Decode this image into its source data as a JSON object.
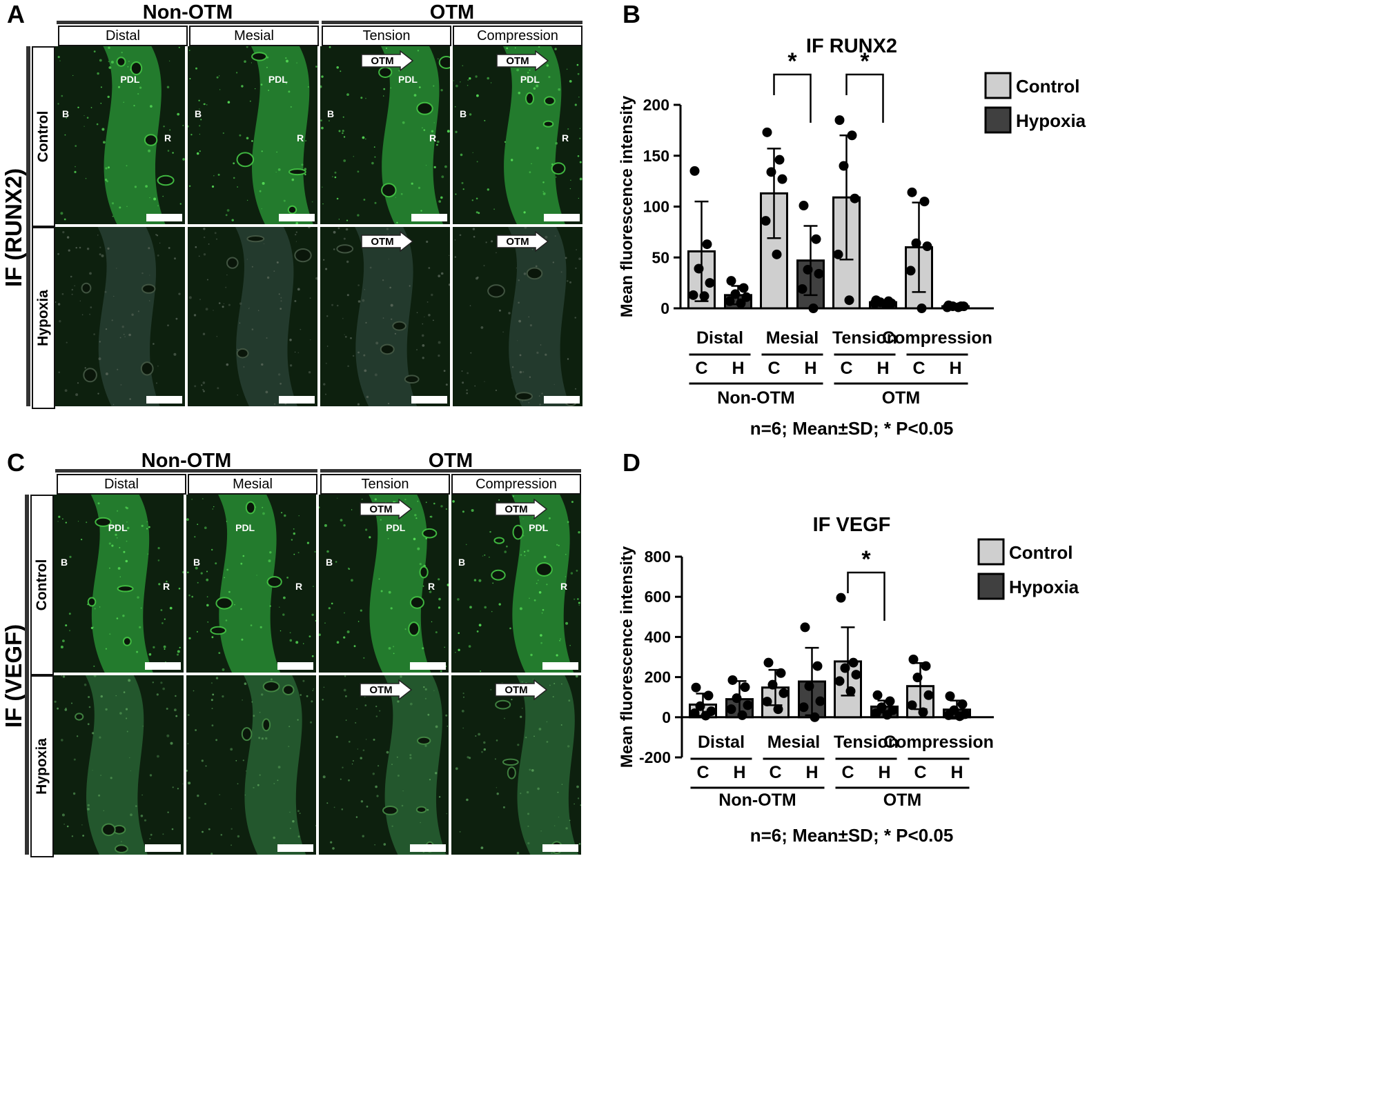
{
  "panels": {
    "A": {
      "label": "A",
      "side_label": "IF (RUNX2)",
      "groups": [
        "Non-OTM",
        "OTM"
      ],
      "columns": [
        "Distal",
        "Mesial",
        "Tension",
        "Compression"
      ],
      "rows": [
        "Control",
        "Hypoxia"
      ],
      "arrow_text": "OTM",
      "tissue_labels": [
        "PDL",
        "B",
        "R"
      ]
    },
    "C": {
      "label": "C",
      "side_label": "IF (VEGF)",
      "groups": [
        "Non-OTM",
        "OTM"
      ],
      "columns": [
        "Distal",
        "Mesial",
        "Tension",
        "Compression"
      ],
      "rows": [
        "Control",
        "Hypoxia"
      ],
      "arrow_text": "OTM",
      "tissue_labels": [
        "PDL",
        "B",
        "R"
      ]
    },
    "B": {
      "label": "B"
    },
    "D": {
      "label": "D"
    }
  },
  "chart_data": [
    {
      "type": "bar",
      "panel": "B",
      "title": "IF RUNX2",
      "ylabel": "Mean fluorescence intensity",
      "ylim": [
        0,
        200
      ],
      "yticks": [
        0,
        50,
        100,
        150,
        200
      ],
      "categories": [
        "Distal",
        "Mesial",
        "Tension",
        "Compression"
      ],
      "subcategories": [
        "C",
        "H"
      ],
      "groups": [
        "Non-OTM",
        "OTM"
      ],
      "legend": [
        "Control",
        "Hypoxia"
      ],
      "legend_position": "top-right",
      "series_colors": {
        "Control": "#cfcfcf",
        "Hypoxia": "#404040"
      },
      "series": [
        {
          "name": "Control",
          "values": [
            56,
            113,
            109,
            60
          ],
          "sd": [
            49,
            44,
            61,
            44
          ],
          "points": [
            [
              135,
              63,
              39,
              25,
              13,
              12
            ],
            [
              173,
              146,
              134,
              127,
              86,
              53
            ],
            [
              185,
              170,
              140,
              108,
              53,
              8
            ],
            [
              114,
              105,
              64,
              61,
              37,
              0
            ]
          ]
        },
        {
          "name": "Hypoxia",
          "values": [
            13,
            47,
            6,
            2
          ],
          "sd": [
            9,
            34,
            2,
            1
          ],
          "points": [
            [
              27,
              20,
              14,
              11,
              7,
              5
            ],
            [
              101,
              68,
              38,
              34,
              19,
              0
            ],
            [
              8,
              7,
              6,
              5,
              5,
              4
            ],
            [
              3,
              2,
              2,
              2,
              1,
              1
            ]
          ]
        }
      ],
      "significance": [
        {
          "category": "Mesial",
          "label": "*"
        },
        {
          "category": "Tension",
          "label": "*"
        }
      ],
      "footnote": "n=6; Mean±SD; * P<0.05"
    },
    {
      "type": "bar",
      "panel": "D",
      "title": "IF VEGF",
      "ylabel": "Mean fluorescence intensity",
      "ylim": [
        -200,
        800
      ],
      "yticks": [
        -200,
        0,
        200,
        400,
        600,
        800
      ],
      "categories": [
        "Distal",
        "Mesial",
        "Tension",
        "Compression"
      ],
      "subcategories": [
        "C",
        "H"
      ],
      "groups": [
        "Non-OTM",
        "OTM"
      ],
      "legend": [
        "Control",
        "Hypoxia"
      ],
      "legend_position": "top-right",
      "series_colors": {
        "Control": "#cfcfcf",
        "Hypoxia": "#404040"
      },
      "series": [
        {
          "name": "Control",
          "values": [
            63,
            148,
            278,
            155
          ],
          "sd": [
            55,
            88,
            170,
            115
          ],
          "points": [
            [
              148,
              108,
              55,
              30,
              20,
              8
            ],
            [
              272,
              220,
              162,
              120,
              78,
              40
            ],
            [
              595,
              272,
              245,
              212,
              180,
              130
            ],
            [
              288,
              255,
              198,
              110,
              60,
              25
            ]
          ]
        },
        {
          "name": "Hypoxia",
          "values": [
            90,
            178,
            53,
            38
          ],
          "sd": [
            90,
            168,
            30,
            45
          ],
          "points": [
            [
              185,
              150,
              95,
              60,
              40,
              10
            ],
            [
              448,
              255,
              155,
              80,
              50,
              0
            ],
            [
              110,
              80,
              50,
              35,
              20,
              12
            ],
            [
              105,
              65,
              35,
              15,
              10,
              5
            ]
          ]
        }
      ],
      "significance": [
        {
          "category": "Tension",
          "label": "*"
        }
      ],
      "footnote": "n=6; Mean±SD; * P<0.05"
    }
  ]
}
